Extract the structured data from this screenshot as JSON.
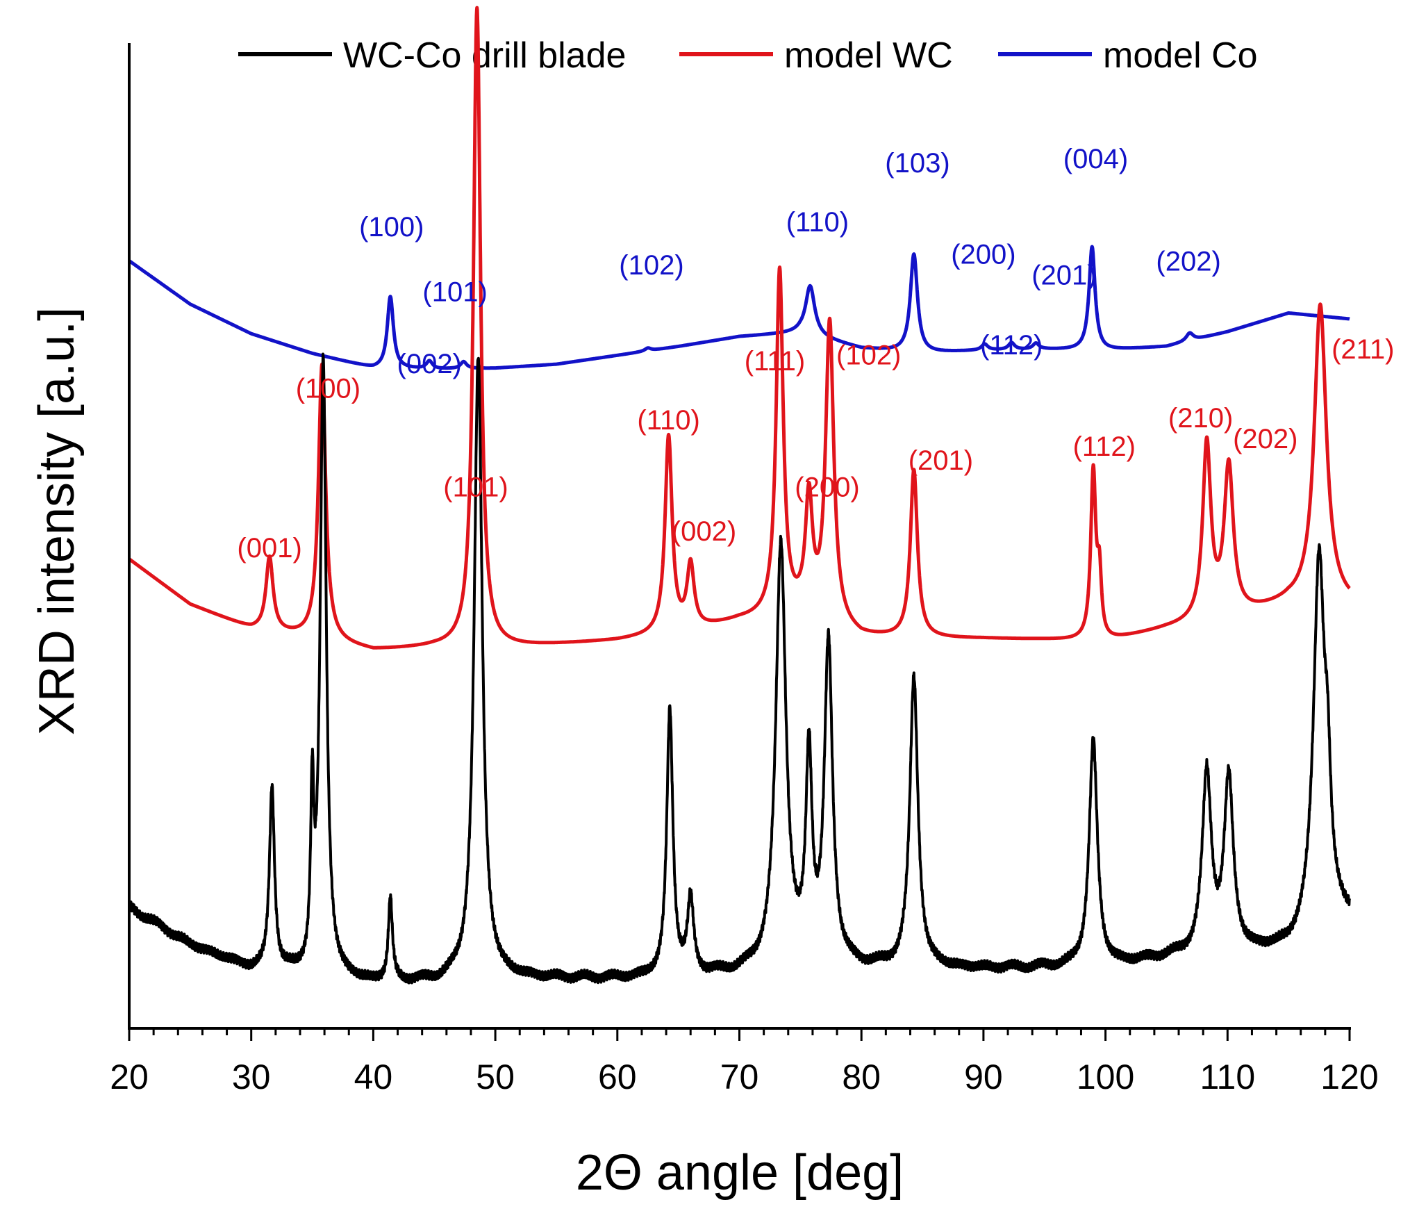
{
  "chart_data": {
    "type": "line",
    "title": "",
    "xlabel": "2Θ angle [deg]",
    "ylabel": "XRD intensity [a.u.]",
    "xlim": [
      20,
      120
    ],
    "ylim": [
      0,
      100
    ],
    "x_ticks": [
      "20",
      "30",
      "40",
      "50",
      "60",
      "70",
      "80",
      "90",
      "100",
      "110",
      "120"
    ],
    "x_tick_values": [
      20,
      30,
      40,
      50,
      60,
      70,
      80,
      90,
      100,
      110,
      120
    ],
    "x_minor_step": 2,
    "y_ticks_shown": false,
    "grid": false,
    "legend_position": "top",
    "colors": {
      "wcco": "#000000",
      "wc": "#e0141b",
      "co": "#1212c8"
    },
    "series": [
      {
        "name": "WC-Co drill blade",
        "color_key": "wcco",
        "noise": true,
        "baseline": [
          [
            20,
            12.3
          ],
          [
            25,
            8.5
          ],
          [
            30,
            6.0
          ],
          [
            35,
            5.2
          ],
          [
            40,
            4.6
          ],
          [
            45,
            4.6
          ],
          [
            50,
            5.0
          ],
          [
            55,
            5.0
          ],
          [
            60,
            5.0
          ],
          [
            65,
            5.1
          ],
          [
            70,
            5.5
          ],
          [
            75,
            6.0
          ],
          [
            80,
            6.0
          ],
          [
            85,
            6.0
          ],
          [
            90,
            6.0
          ],
          [
            95,
            6.1
          ],
          [
            100,
            6.2
          ],
          [
            105,
            7.1
          ],
          [
            110,
            7.4
          ],
          [
            115,
            7.9
          ],
          [
            120,
            11.0
          ]
        ],
        "peaks": [
          {
            "x": 31.7,
            "h": 18.6,
            "w": 0.25
          },
          {
            "x": 35.0,
            "h": 16.5,
            "w": 0.15
          },
          {
            "x": 35.9,
            "h": 62.5,
            "w": 0.3
          },
          {
            "x": 41.4,
            "h": 8.4,
            "w": 0.2
          },
          {
            "x": 48.6,
            "h": 63.0,
            "w": 0.4
          },
          {
            "x": 64.3,
            "h": 27.0,
            "w": 0.3
          },
          {
            "x": 66.0,
            "h": 7.5,
            "w": 0.3
          },
          {
            "x": 73.4,
            "h": 43.0,
            "w": 0.5
          },
          {
            "x": 75.7,
            "h": 20.5,
            "w": 0.3
          },
          {
            "x": 77.3,
            "h": 32.5,
            "w": 0.4
          },
          {
            "x": 84.3,
            "h": 29.5,
            "w": 0.4
          },
          {
            "x": 99.0,
            "h": 23.0,
            "w": 0.4
          },
          {
            "x": 108.3,
            "h": 18.2,
            "w": 0.45
          },
          {
            "x": 110.1,
            "h": 17.5,
            "w": 0.45
          },
          {
            "x": 117.5,
            "h": 37.8,
            "w": 0.55
          },
          {
            "x": 118.2,
            "h": 10.0,
            "w": 0.3
          }
        ]
      },
      {
        "name": "model WC",
        "color_key": "wc",
        "noise": false,
        "baseline": [
          [
            20,
            47.6
          ],
          [
            25,
            43.0
          ],
          [
            30,
            40.5
          ],
          [
            35,
            39.5
          ],
          [
            40,
            38.3
          ],
          [
            45,
            38.6
          ],
          [
            50,
            38.5
          ],
          [
            55,
            38.9
          ],
          [
            60,
            39.3
          ],
          [
            65,
            40.0
          ],
          [
            70,
            41.3
          ],
          [
            75,
            41.8
          ],
          [
            80,
            39.6
          ],
          [
            85,
            39.5
          ],
          [
            90,
            39.5
          ],
          [
            95,
            39.4
          ],
          [
            100,
            39.2
          ],
          [
            105,
            40.5
          ],
          [
            110,
            41.5
          ],
          [
            115,
            43.0
          ],
          [
            120,
            42.8
          ]
        ],
        "peaks": [
          {
            "x": 31.5,
            "h": 7.5,
            "w": 0.35
          },
          {
            "x": 35.8,
            "h": 28.0,
            "w": 0.35
          },
          {
            "x": 48.5,
            "h": 65.0,
            "w": 0.35
          },
          {
            "x": 64.2,
            "h": 20.0,
            "w": 0.35
          },
          {
            "x": 66.0,
            "h": 6.5,
            "w": 0.35
          },
          {
            "x": 73.3,
            "h": 35.0,
            "w": 0.35
          },
          {
            "x": 75.7,
            "h": 11.5,
            "w": 0.35
          },
          {
            "x": 77.4,
            "h": 30.5,
            "w": 0.4
          },
          {
            "x": 84.3,
            "h": 17.0,
            "w": 0.35
          },
          {
            "x": 99.0,
            "h": 17.0,
            "w": 0.25
          },
          {
            "x": 99.5,
            "h": 6.0,
            "w": 0.2
          },
          {
            "x": 108.3,
            "h": 17.8,
            "w": 0.4
          },
          {
            "x": 110.1,
            "h": 15.2,
            "w": 0.45
          },
          {
            "x": 117.6,
            "h": 30.5,
            "w": 0.6
          }
        ]
      },
      {
        "name": "model Co",
        "color_key": "co",
        "noise": false,
        "baseline": [
          [
            20,
            77.9
          ],
          [
            25,
            73.5
          ],
          [
            30,
            70.5
          ],
          [
            35,
            68.5
          ],
          [
            40,
            67.0
          ],
          [
            45,
            66.9
          ],
          [
            50,
            67.0
          ],
          [
            55,
            67.4
          ],
          [
            60,
            68.3
          ],
          [
            65,
            69.2
          ],
          [
            70,
            70.2
          ],
          [
            75,
            70.6
          ],
          [
            80,
            69.0
          ],
          [
            85,
            68.5
          ],
          [
            90,
            68.8
          ],
          [
            95,
            68.9
          ],
          [
            100,
            68.8
          ],
          [
            105,
            69.2
          ],
          [
            110,
            70.7
          ],
          [
            115,
            72.6
          ],
          [
            120,
            72.0
          ]
        ],
        "peaks": [
          {
            "x": 41.4,
            "h": 7.3,
            "w": 0.3
          },
          {
            "x": 44.6,
            "h": 0.8,
            "w": 0.3
          },
          {
            "x": 47.4,
            "h": 0.7,
            "w": 0.3
          },
          {
            "x": 62.5,
            "h": 0.3,
            "w": 0.3
          },
          {
            "x": 75.8,
            "h": 5.0,
            "w": 0.45
          },
          {
            "x": 84.3,
            "h": 10.0,
            "w": 0.35
          },
          {
            "x": 90.1,
            "h": 0.6,
            "w": 0.3
          },
          {
            "x": 92.3,
            "h": 0.7,
            "w": 0.3
          },
          {
            "x": 94.3,
            "h": 0.6,
            "w": 0.3
          },
          {
            "x": 98.9,
            "h": 10.5,
            "w": 0.3
          },
          {
            "x": 106.9,
            "h": 0.8,
            "w": 0.35
          }
        ]
      }
    ],
    "annotations": {
      "wc": [
        {
          "label": "(001)",
          "x": 31.5,
          "y": 47.8
        },
        {
          "label": "(100)",
          "x": 36.3,
          "y": 64.0
        },
        {
          "label": "(101)",
          "x": 48.4,
          "y": 54.0
        },
        {
          "label": "(110)",
          "x": 64.2,
          "y": 60.8
        },
        {
          "label": "(002)",
          "x": 67.1,
          "y": 49.5
        },
        {
          "label": "(111)",
          "x": 72.9,
          "y": 66.8
        },
        {
          "label": "(102)",
          "x": 80.6,
          "y": 67.4
        },
        {
          "label": "(200)",
          "x": 77.2,
          "y": 54.0
        },
        {
          "label": "(201)",
          "x": 86.5,
          "y": 56.7
        },
        {
          "label": "(112)",
          "x": 99.9,
          "y": 58.1
        },
        {
          "label": "(210)",
          "x": 107.8,
          "y": 61.0
        },
        {
          "label": "(202)",
          "x": 113.1,
          "y": 58.9
        },
        {
          "label": "(211)",
          "x": 121.1,
          "y": 68.0
        }
      ],
      "co": [
        {
          "label": "(100)",
          "x": 41.5,
          "y": 80.4
        },
        {
          "label": "(101)",
          "x": 46.7,
          "y": 73.8
        },
        {
          "label": "(002)",
          "x": 44.6,
          "y": 66.5
        },
        {
          "label": "(102)",
          "x": 62.8,
          "y": 76.5
        },
        {
          "label": "(110)",
          "x": 76.4,
          "y": 80.9
        },
        {
          "label": "(103)",
          "x": 84.6,
          "y": 86.9
        },
        {
          "label": "(200)",
          "x": 90.0,
          "y": 77.6
        },
        {
          "label": "(201)",
          "x": 96.6,
          "y": 75.5
        },
        {
          "label": "(112)",
          "x": 92.3,
          "y": 68.4
        },
        {
          "label": "(004)",
          "x": 99.2,
          "y": 87.3
        },
        {
          "label": "(202)",
          "x": 106.8,
          "y": 76.9
        }
      ]
    }
  }
}
